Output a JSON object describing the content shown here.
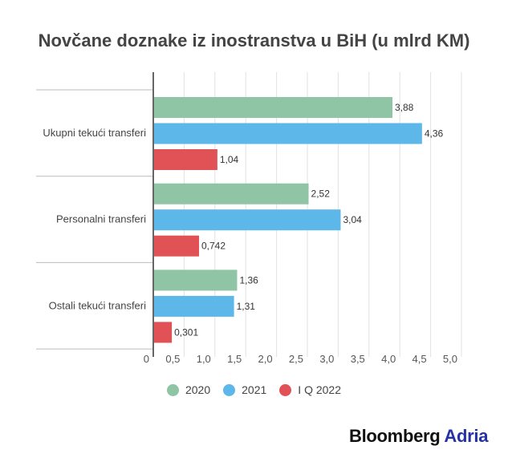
{
  "chart_data": {
    "type": "bar",
    "orientation": "horizontal",
    "title": "Novčane doznake iz inostranstva u BiH (u mlrd KM)",
    "categories": [
      "Ukupni tekući transferi",
      "Personalni transferi",
      "Ostali tekući transferi"
    ],
    "series": [
      {
        "name": "2020",
        "color": "#8fc4a4",
        "values": [
          3.88,
          2.52,
          1.36
        ],
        "labels": [
          "3,88",
          "2,52",
          "1,36"
        ]
      },
      {
        "name": "2021",
        "color": "#5db7e8",
        "values": [
          4.36,
          3.04,
          1.31
        ],
        "labels": [
          "4,36",
          "3,04",
          "1,31"
        ]
      },
      {
        "name": "I Q 2022",
        "color": "#e05256",
        "values": [
          1.04,
          0.742,
          0.301
        ],
        "labels": [
          "1,04",
          "0,742",
          "0,301"
        ]
      }
    ],
    "xlim": [
      0,
      5.0
    ],
    "xticks": [
      0,
      0.5,
      1.0,
      1.5,
      2.0,
      2.5,
      3.0,
      3.5,
      4.0,
      4.5,
      5.0
    ],
    "xtick_labels": [
      "0",
      "0,5",
      "1,0",
      "1,5",
      "2,0",
      "2,5",
      "3,0",
      "3,5",
      "4,0",
      "4,5",
      "5,0"
    ],
    "grid": true,
    "legend": "bottom"
  },
  "brand": {
    "part1": "Bloomberg",
    "part2": "Adria",
    "color2": "#2532a6"
  }
}
